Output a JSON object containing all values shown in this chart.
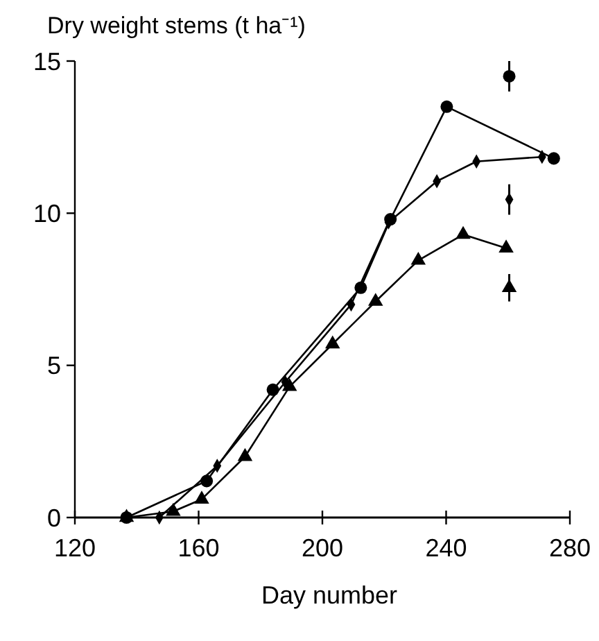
{
  "chart_data": {
    "type": "line",
    "ylabel": "Dry weight stems (t ha⁻¹)",
    "xlabel": "Day number",
    "xlim": [
      120,
      280
    ],
    "xticks": [
      120,
      160,
      200,
      240,
      280
    ],
    "ylim": [
      0,
      15
    ],
    "yticks": [
      0,
      5,
      10,
      15
    ],
    "line_style": "solid",
    "series": [
      {
        "marker": "circle",
        "color": "#000000",
        "x": [
          136.7,
          162.6,
          184,
          212.4,
          222,
          240.2,
          274.8
        ],
        "values": [
          0,
          1.2,
          4.2,
          7.55,
          9.8,
          13.5,
          11.8
        ]
      },
      {
        "marker": "diamond",
        "color": "#000000",
        "x": [
          147.3,
          166,
          188,
          209.3,
          221.4,
          237,
          249.8,
          271
        ],
        "values": [
          0,
          1.7,
          4.45,
          7.0,
          9.7,
          11.05,
          11.7,
          11.85
        ]
      },
      {
        "marker": "triangle",
        "color": "#000000",
        "x": [
          136.7,
          151.8,
          161,
          175,
          189.4,
          203.3,
          217.2,
          231,
          245.5,
          259.4
        ],
        "values": [
          0,
          0.2,
          0.6,
          2.0,
          4.3,
          5.7,
          7.1,
          8.45,
          9.3,
          8.85
        ]
      },
      {
        "type": "scatter",
        "marker": "circle",
        "color": "#000000",
        "x": [
          260.4
        ],
        "values": [
          14.5
        ],
        "errors": [
          0.5
        ]
      },
      {
        "type": "scatter",
        "marker": "diamond",
        "color": "#000000",
        "x": [
          260.4
        ],
        "values": [
          10.45
        ],
        "errors": [
          0.5
        ]
      },
      {
        "type": "scatter",
        "marker": "triangle",
        "color": "#000000",
        "x": [
          260.4
        ],
        "values": [
          7.55
        ],
        "errors": [
          0.45
        ]
      }
    ]
  }
}
